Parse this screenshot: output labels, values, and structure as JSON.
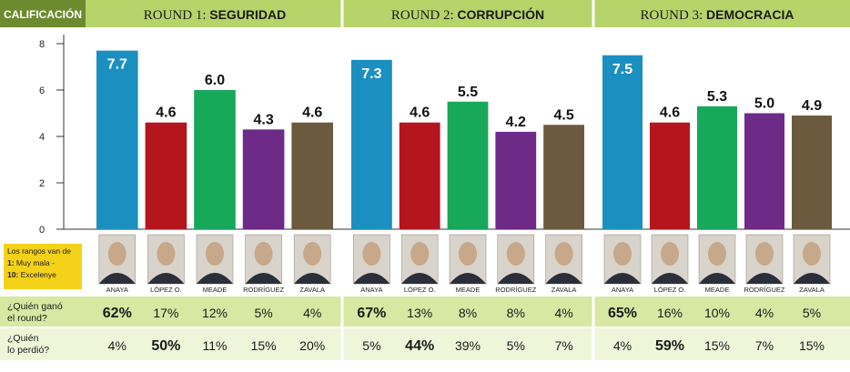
{
  "header": {
    "calificacion_label": "CALIFICACIÓN",
    "rounds": [
      {
        "prefix": "ROUND 1: ",
        "topic": "SEGURIDAD"
      },
      {
        "prefix": "ROUND 2: ",
        "topic": "CORRUPCIÓN"
      },
      {
        "prefix": "ROUND 3: ",
        "topic": "DEMOCRACIA"
      }
    ]
  },
  "legend_note": {
    "line1": "Los rangos van de",
    "line2_bold": "1:",
    "line2": " Muy mala -",
    "line3_bold": "10:",
    "line3": " Excelenye"
  },
  "rows": {
    "won_line1": "¿Quién ganó",
    "won_line2": "el round?",
    "lost_line1": "¿Quién",
    "lost_line2": "lo perdió?"
  },
  "colors": {
    "header_green": "#b5d46a",
    "row_green": "#d6e8a2",
    "row_green_light": "#eef5d8",
    "calificacion_bg": "#6c8a2e"
  },
  "candidates": [
    {
      "name": "ANAYA",
      "color": "#1b8fc0"
    },
    {
      "name": "LÓPEZ O.",
      "color": "#b5151c"
    },
    {
      "name": "MEADE",
      "color": "#18a85a"
    },
    {
      "name": "RODRÍGUEZ",
      "color": "#6d2a86"
    },
    {
      "name": "ZAVALA",
      "color": "#6b5a3e"
    }
  ],
  "chart_data": {
    "type": "bar",
    "ylabel": "CALIFICACIÓN",
    "ylim": [
      0,
      8
    ],
    "yticks": [
      "0",
      "2",
      "4",
      "6",
      "8"
    ],
    "categories": [
      "ANAYA",
      "LÓPEZ O.",
      "MEADE",
      "RODRÍGUEZ",
      "ZAVALA"
    ],
    "grid": false,
    "panels": [
      {
        "title": "ROUND 1: SEGURIDAD",
        "values": [
          7.7,
          4.6,
          6.0,
          4.3,
          4.6
        ],
        "labels": [
          "7.7",
          "4.6",
          "6.0",
          "4.3",
          "4.6"
        ],
        "won": [
          "62",
          "17",
          "12",
          "5",
          "4"
        ],
        "lost": [
          "4",
          "50",
          "11",
          "15",
          "20"
        ]
      },
      {
        "title": "ROUND 2: CORRUPCIÓN",
        "values": [
          7.3,
          4.6,
          5.5,
          4.2,
          4.5
        ],
        "labels": [
          "7.3",
          "4.6",
          "5.5",
          "4.2",
          "4.5"
        ],
        "won": [
          "67",
          "13",
          "8",
          "8",
          "4"
        ],
        "lost": [
          "5",
          "44",
          "39",
          "5",
          "7"
        ]
      },
      {
        "title": "ROUND 3: DEMOCRACIA",
        "values": [
          7.5,
          4.6,
          5.3,
          5.0,
          4.9
        ],
        "labels": [
          "7.5",
          "4.6",
          "5.3",
          "5.0",
          "4.9"
        ],
        "won": [
          "65",
          "16",
          "10",
          "4",
          "5"
        ],
        "lost": [
          "4",
          "59",
          "15",
          "7",
          "15"
        ]
      }
    ],
    "percent_sign": "%"
  }
}
